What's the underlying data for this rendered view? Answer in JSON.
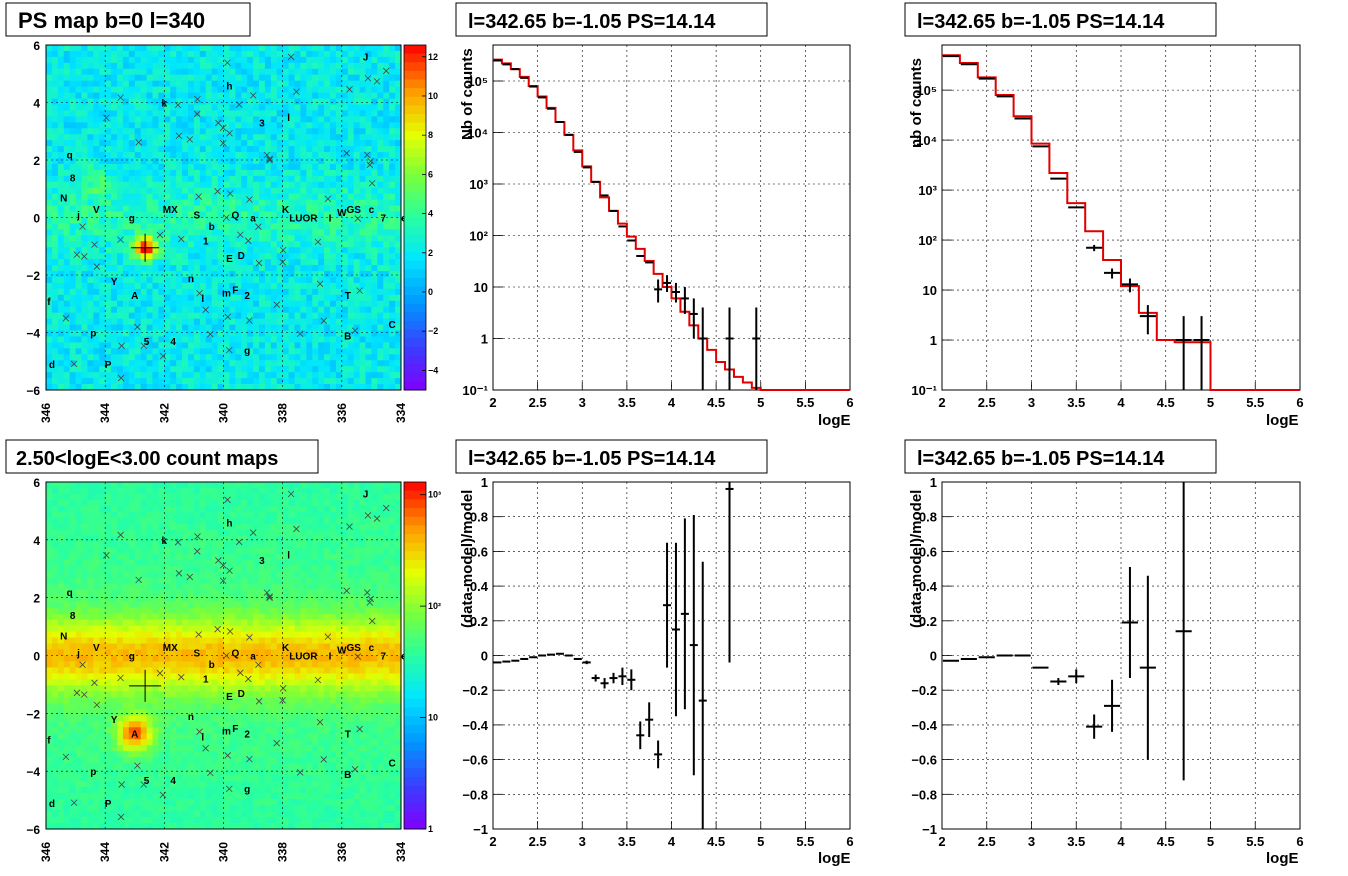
{
  "colors": {
    "histogram": "#e00000",
    "points": "#000000",
    "grid": "#000000"
  },
  "panels": {
    "ps_map": {
      "title": "PS map b=0 l=340",
      "x_ticks": [
        "346",
        "344",
        "342",
        "340",
        "338",
        "336",
        "334"
      ],
      "y_ticks": [
        "6",
        "4",
        "2",
        "0",
        "−2",
        "−4",
        "−6"
      ],
      "colorbar_ticks": [
        "12",
        "10",
        "8",
        "6",
        "4",
        "2",
        "0",
        "−2",
        "−4"
      ]
    },
    "count_map": {
      "title": "2.50<logE<3.00 count maps",
      "x_ticks": [
        "346",
        "344",
        "342",
        "340",
        "338",
        "336",
        "334"
      ],
      "y_ticks": [
        "6",
        "4",
        "2",
        "0",
        "−2",
        "−4",
        "−6"
      ],
      "colorbar_ticks": [
        "10³",
        "10²",
        "10",
        "1"
      ]
    },
    "source_labels": [
      {
        "t": "J",
        "l": 335.2,
        "b": 5.6
      },
      {
        "t": "h",
        "l": 339.8,
        "b": 4.6
      },
      {
        "t": "k",
        "l": 342.0,
        "b": 4.0
      },
      {
        "t": "3",
        "l": 338.7,
        "b": 3.3
      },
      {
        "t": "l",
        "l": 337.8,
        "b": 3.5
      },
      {
        "t": "q",
        "l": 345.2,
        "b": 2.2
      },
      {
        "t": "8",
        "l": 345.1,
        "b": 1.4
      },
      {
        "t": "N",
        "l": 345.4,
        "b": 0.7
      },
      {
        "t": "V",
        "l": 344.3,
        "b": 0.3
      },
      {
        "t": "j",
        "l": 344.9,
        "b": 0.1
      },
      {
        "t": "g",
        "l": 343.1,
        "b": 0.0
      },
      {
        "t": "MX",
        "l": 341.8,
        "b": 0.3
      },
      {
        "t": "S",
        "l": 340.9,
        "b": 0.1
      },
      {
        "t": "b",
        "l": 340.4,
        "b": -0.3
      },
      {
        "t": "Q",
        "l": 339.6,
        "b": 0.1
      },
      {
        "t": "a",
        "l": 339.0,
        "b": 0.0
      },
      {
        "t": "1",
        "l": 340.6,
        "b": -0.8
      },
      {
        "t": "E",
        "l": 339.8,
        "b": -1.4
      },
      {
        "t": "D",
        "l": 339.4,
        "b": -1.3
      },
      {
        "t": "K",
        "l": 337.9,
        "b": 0.3
      },
      {
        "t": "LUOR",
        "l": 337.3,
        "b": 0.0
      },
      {
        "t": "I",
        "l": 336.4,
        "b": 0.0
      },
      {
        "t": "W",
        "l": 336.0,
        "b": 0.2
      },
      {
        "t": "GS",
        "l": 335.6,
        "b": 0.3
      },
      {
        "t": "c",
        "l": 335.0,
        "b": 0.3
      },
      {
        "t": "7",
        "l": 334.6,
        "b": 0.0
      },
      {
        "t": "e",
        "l": 333.9,
        "b": 0.0
      },
      {
        "t": "Y",
        "l": 343.7,
        "b": -2.2
      },
      {
        "t": "n",
        "l": 341.1,
        "b": -2.1
      },
      {
        "t": "F",
        "l": 339.6,
        "b": -2.5
      },
      {
        "t": "A",
        "l": 343.0,
        "b": -2.7
      },
      {
        "t": "f",
        "l": 345.9,
        "b": -2.9
      },
      {
        "t": "m",
        "l": 339.9,
        "b": -2.6
      },
      {
        "t": "l",
        "l": 340.7,
        "b": -2.8
      },
      {
        "t": "2",
        "l": 339.2,
        "b": -2.7
      },
      {
        "t": "T",
        "l": 335.8,
        "b": -2.7
      },
      {
        "t": "C",
        "l": 334.3,
        "b": -3.7
      },
      {
        "t": "p",
        "l": 344.4,
        "b": -4.0
      },
      {
        "t": "B",
        "l": 335.8,
        "b": -4.1
      },
      {
        "t": "5",
        "l": 342.6,
        "b": -4.3
      },
      {
        "t": "4",
        "l": 341.7,
        "b": -4.3
      },
      {
        "t": "g",
        "l": 339.2,
        "b": -4.6
      },
      {
        "t": "d",
        "l": 345.8,
        "b": -5.1
      },
      {
        "t": "P",
        "l": 343.9,
        "b": -5.1
      }
    ],
    "spectrum_1": {
      "title": "l=342.65 b=-1.05 PS=14.14",
      "ylabel": "Nb of counts",
      "xlabel": "logE",
      "x_ticks": [
        "2",
        "2.5",
        "3",
        "3.5",
        "4",
        "4.5",
        "5",
        "5.5",
        "6"
      ],
      "y_ticks": [
        "10⁵",
        "10⁴",
        "10³",
        "10²",
        "10",
        "1",
        "10⁻¹"
      ]
    },
    "spectrum_2": {
      "title": "l=342.65 b=-1.05 PS=14.14",
      "ylabel": "nb of counts",
      "xlabel": "logE",
      "x_ticks": [
        "2",
        "2.5",
        "3",
        "3.5",
        "4",
        "4.5",
        "5",
        "5.5",
        "6"
      ],
      "y_ticks": [
        "10⁵",
        "10⁴",
        "10³",
        "10²",
        "10",
        "1",
        "10⁻¹"
      ]
    },
    "residual_1": {
      "title": "l=342.65 b=-1.05 PS=14.14",
      "ylabel": "(data-model)/model",
      "xlabel": "logE",
      "x_ticks": [
        "2",
        "2.5",
        "3",
        "3.5",
        "4",
        "4.5",
        "5",
        "5.5",
        "6"
      ],
      "y_ticks": [
        "1",
        "0.8",
        "0.6",
        "0.4",
        "0.2",
        "0",
        "−0.2",
        "−0.4",
        "−0.6",
        "−0.8",
        "−1"
      ]
    },
    "residual_2": {
      "title": "l=342.65 b=-1.05 PS=14.14",
      "ylabel": "(data-model)/model",
      "xlabel": "logE",
      "x_ticks": [
        "2",
        "2.5",
        "3",
        "3.5",
        "4",
        "4.5",
        "5",
        "5.5",
        "6"
      ],
      "y_ticks": [
        "1",
        "0.8",
        "0.6",
        "0.4",
        "0.2",
        "0",
        "−0.2",
        "−0.4",
        "−0.6",
        "−0.8",
        "−1"
      ]
    }
  },
  "chart_data": [
    {
      "type": "heatmap",
      "title": "PS map b=0 l=340",
      "xlim": [
        346,
        334
      ],
      "ylim": [
        -6,
        6
      ],
      "zlim": [
        -5,
        12
      ],
      "peak": {
        "l": 342.65,
        "b": -1.05
      }
    },
    {
      "type": "line",
      "title": "l=342.65 b=-1.05 PS=14.14",
      "ylabel": "Nb of counts",
      "xlabel": "logE",
      "xlim": [
        2,
        6
      ],
      "ylim": [
        0.1,
        500000
      ],
      "y_scale": "log",
      "grid": true,
      "model_step": {
        "edges": [
          2.0,
          2.1,
          2.2,
          2.3,
          2.4,
          2.5,
          2.6,
          2.7,
          2.8,
          2.9,
          3.0,
          3.1,
          3.2,
          3.3,
          3.4,
          3.5,
          3.6,
          3.7,
          3.8,
          3.9,
          4.0,
          4.1,
          4.2,
          4.3,
          4.4,
          4.5,
          4.6,
          4.7,
          4.8,
          4.9,
          5.0,
          6.0
        ],
        "values": [
          260000,
          220000,
          170000,
          120000,
          80000,
          50000,
          30000,
          16000,
          9000,
          4500,
          2200,
          1100,
          550,
          300,
          170,
          95,
          55,
          32,
          18,
          10,
          6,
          3.3,
          1.8,
          1.0,
          0.6,
          0.35,
          0.25,
          0.18,
          0.14,
          0.11,
          0.1
        ]
      },
      "data_points": {
        "x": [
          2.05,
          2.15,
          2.25,
          2.35,
          2.45,
          2.55,
          2.65,
          2.75,
          2.85,
          2.95,
          3.05,
          3.15,
          3.25,
          3.35,
          3.45,
          3.55,
          3.65,
          3.75,
          3.85,
          3.95,
          4.05,
          4.15,
          4.25,
          4.35,
          4.65,
          4.95
        ],
        "y": [
          250000,
          210000,
          170000,
          115000,
          78000,
          48000,
          29000,
          16000,
          9000,
          4200,
          2100,
          1100,
          600,
          300,
          150,
          80,
          40,
          30,
          9,
          12,
          8,
          6,
          3,
          1,
          1,
          1
        ],
        "yerr_low": [
          0,
          0,
          0,
          0,
          0,
          0,
          0,
          0,
          0,
          0,
          0,
          0,
          0,
          0,
          0,
          0,
          0,
          0,
          4,
          4,
          3,
          3,
          2,
          0.9,
          0.9,
          0.9
        ],
        "yerr_high": [
          0,
          0,
          0,
          0,
          0,
          0,
          0,
          0,
          0,
          0,
          0,
          0,
          0,
          0,
          0,
          0,
          0,
          0,
          5,
          5,
          4,
          4,
          3,
          3,
          3,
          3
        ]
      }
    },
    {
      "type": "line",
      "title": "l=342.65 b=-1.05 PS=14.14",
      "ylabel": "nb of counts",
      "xlabel": "logE",
      "xlim": [
        2,
        6
      ],
      "ylim": [
        0.1,
        800000
      ],
      "y_scale": "log",
      "grid": true,
      "model_step": {
        "edges": [
          2.0,
          2.2,
          2.4,
          2.6,
          2.8,
          3.0,
          3.2,
          3.4,
          3.6,
          3.8,
          4.0,
          4.2,
          4.4,
          4.6,
          4.8,
          5.0,
          6.0
        ],
        "values": [
          500000,
          350000,
          180000,
          80000,
          30000,
          8500,
          2200,
          550,
          150,
          40,
          12,
          3.5,
          1.0,
          0.9,
          0.9,
          0.1
        ]
      },
      "data_points": {
        "x": [
          2.1,
          2.3,
          2.5,
          2.7,
          2.9,
          3.1,
          3.3,
          3.5,
          3.7,
          3.9,
          4.1,
          4.3,
          4.7,
          4.9
        ],
        "y": [
          480000,
          330000,
          170000,
          75000,
          27000,
          7500,
          1700,
          450,
          70,
          22,
          13,
          3,
          1,
          1
        ],
        "yerr_low": [
          0,
          0,
          0,
          0,
          0,
          0,
          0,
          0,
          10,
          5,
          4,
          1.7,
          0.9,
          0.9
        ],
        "yerr_high": [
          0,
          0,
          0,
          0,
          0,
          0,
          0,
          0,
          10,
          5,
          4,
          2,
          2,
          2
        ]
      }
    },
    {
      "type": "heatmap",
      "title": "2.50<logE<3.00 count maps",
      "xlim": [
        346,
        334
      ],
      "ylim": [
        -6,
        6
      ],
      "z_scale": "log",
      "zlim": [
        1,
        1000
      ]
    },
    {
      "type": "scatter",
      "title": "l=342.65 b=-1.05 PS=14.14",
      "ylabel": "(data-model)/model",
      "xlabel": "logE",
      "xlim": [
        2,
        6
      ],
      "ylim": [
        -1,
        1
      ],
      "grid": true,
      "x": [
        2.05,
        2.15,
        2.25,
        2.35,
        2.45,
        2.55,
        2.65,
        2.75,
        2.85,
        2.95,
        3.05,
        3.15,
        3.25,
        3.35,
        3.45,
        3.55,
        3.65,
        3.75,
        3.85,
        3.95,
        4.05,
        4.15,
        4.25,
        4.35,
        4.65
      ],
      "y": [
        -0.04,
        -0.035,
        -0.03,
        -0.02,
        -0.01,
        0.0,
        0.005,
        0.01,
        0.0,
        -0.02,
        -0.04,
        -0.13,
        -0.16,
        -0.13,
        -0.12,
        -0.14,
        -0.46,
        -0.37,
        -0.57,
        0.29,
        0.15,
        0.24,
        0.06,
        -0.26,
        0.96
      ],
      "yerr": [
        0,
        0,
        0,
        0,
        0,
        0,
        0,
        0,
        0,
        0,
        0.01,
        0.02,
        0.03,
        0.03,
        0.05,
        0.06,
        0.08,
        0.1,
        0.08,
        0.36,
        0.5,
        0.55,
        0.75,
        0.8,
        1.0
      ]
    },
    {
      "type": "scatter",
      "title": "l=342.65 b=-1.05 PS=14.14",
      "ylabel": "(data-model)/model",
      "xlabel": "logE",
      "xlim": [
        2,
        6
      ],
      "ylim": [
        -1,
        1
      ],
      "grid": true,
      "x": [
        2.1,
        2.3,
        2.5,
        2.7,
        2.9,
        3.1,
        3.3,
        3.5,
        3.7,
        3.9,
        4.1,
        4.3,
        4.7
      ],
      "y": [
        -0.03,
        -0.02,
        -0.01,
        0.0,
        0.0,
        -0.07,
        -0.15,
        -0.12,
        -0.41,
        -0.29,
        0.19,
        -0.07,
        0.14
      ],
      "yerr": [
        0,
        0,
        0,
        0,
        0,
        0,
        0.02,
        0.04,
        0.07,
        0.15,
        0.32,
        0.53,
        0.86
      ]
    }
  ]
}
